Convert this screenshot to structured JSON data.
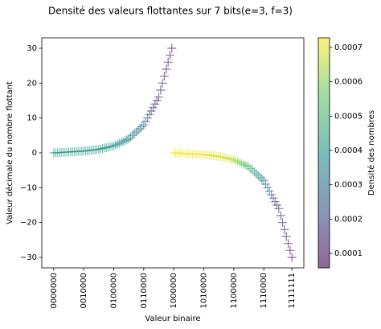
{
  "chart_data": {
    "type": "scatter",
    "title": "Densité des valeurs flottantes sur 7 bits(e=3, f=3)",
    "x_label": "Valeur binaire",
    "y_label": "Valeur décimale du nombre flottant",
    "colorbar_label": "Densité des nombres",
    "colormap": "viridis",
    "marker": "+",
    "x": [
      0,
      1,
      2,
      3,
      4,
      5,
      6,
      7,
      8,
      9,
      10,
      11,
      12,
      13,
      14,
      15,
      16,
      17,
      18,
      19,
      20,
      21,
      22,
      23,
      24,
      25,
      26,
      27,
      28,
      29,
      30,
      31,
      32,
      33,
      34,
      35,
      36,
      37,
      38,
      39,
      40,
      41,
      42,
      43,
      44,
      45,
      46,
      47,
      48,
      49,
      50,
      51,
      52,
      53,
      54,
      55,
      56,
      57,
      58,
      59,
      60,
      61,
      62,
      63,
      64,
      65,
      66,
      67,
      68,
      69,
      70,
      71,
      72,
      73,
      74,
      75,
      76,
      77,
      78,
      79,
      80,
      81,
      82,
      83,
      84,
      85,
      86,
      87,
      88,
      89,
      90,
      91,
      92,
      93,
      94,
      95,
      96,
      97,
      98,
      99,
      100,
      101,
      102,
      103,
      104,
      105,
      106,
      107,
      108,
      109,
      110,
      111,
      112,
      113,
      114,
      115,
      116,
      117,
      118,
      119,
      120,
      121,
      122,
      123,
      124,
      125,
      126,
      127
    ],
    "values": [
      0,
      0.03125,
      0.0625,
      0.09375,
      0.125,
      0.15625,
      0.1875,
      0.21875,
      0.25,
      0.28125,
      0.3125,
      0.34375,
      0.375,
      0.40625,
      0.4375,
      0.46875,
      0.5,
      0.5625,
      0.625,
      0.6875,
      0.75,
      0.8125,
      0.875,
      0.9375,
      1,
      1.125,
      1.25,
      1.375,
      1.5,
      1.625,
      1.75,
      1.875,
      2,
      2.25,
      2.5,
      2.75,
      3,
      3.25,
      3.5,
      3.75,
      4,
      4.5,
      5,
      5.5,
      6,
      6.5,
      7,
      7.5,
      8,
      9,
      10,
      11,
      12,
      13,
      14,
      15,
      16,
      18,
      20,
      22,
      24,
      26,
      28,
      30,
      0,
      -0.03125,
      -0.0625,
      -0.09375,
      -0.125,
      -0.15625,
      -0.1875,
      -0.21875,
      -0.25,
      -0.28125,
      -0.3125,
      -0.34375,
      -0.375,
      -0.40625,
      -0.4375,
      -0.46875,
      -0.5,
      -0.5625,
      -0.625,
      -0.6875,
      -0.75,
      -0.8125,
      -0.875,
      -0.9375,
      -1,
      -1.125,
      -1.25,
      -1.375,
      -1.5,
      -1.625,
      -1.75,
      -1.875,
      -2,
      -2.25,
      -2.5,
      -2.75,
      -3,
      -3.25,
      -3.5,
      -3.75,
      -4,
      -4.5,
      -5,
      -5.5,
      -6,
      -6.5,
      -7,
      -7.5,
      -8,
      -9,
      -10,
      -11,
      -12,
      -13,
      -14,
      -15,
      -16,
      -18,
      -20,
      -22,
      -24,
      -26,
      -28,
      -30
    ],
    "density": [
      0.00042,
      0.00042,
      0.00042,
      0.00042,
      0.00042,
      0.00042,
      0.00042,
      0.00042,
      0.00042,
      0.00042,
      0.00042,
      0.00042,
      0.00042,
      0.00042,
      0.00042,
      0.00042,
      0.00042,
      0.00042,
      0.00042,
      0.00042,
      0.00042,
      0.00042,
      0.00042,
      0.00042,
      0.00041,
      0.00041,
      0.00041,
      0.00041,
      0.00041,
      0.00041,
      0.00041,
      0.00041,
      0.0004,
      0.0004,
      0.00039,
      0.00039,
      0.00038,
      0.00038,
      0.00037,
      0.00037,
      0.00036,
      0.00035,
      0.00034,
      0.00033,
      0.00032,
      0.00031,
      0.0003,
      0.00029,
      0.00027,
      0.00025,
      0.00023,
      0.00021,
      0.00019,
      0.00017,
      0.00015,
      0.00014,
      0.00012,
      0.00011,
      0.0001,
      9e-05,
      8e-05,
      7e-05,
      7e-05,
      6e-05,
      0.00072,
      0.00072,
      0.00072,
      0.00072,
      0.00072,
      0.00072,
      0.00072,
      0.00072,
      0.00071,
      0.00071,
      0.00071,
      0.00071,
      0.00071,
      0.00071,
      0.00071,
      0.00071,
      0.0007,
      0.0007,
      0.0007,
      0.0007,
      0.0007,
      0.0007,
      0.0007,
      0.0007,
      0.00069,
      0.00069,
      0.00069,
      0.00069,
      0.00068,
      0.00068,
      0.00068,
      0.00068,
      0.00066,
      0.00064,
      0.00062,
      0.0006,
      0.00058,
      0.00056,
      0.00054,
      0.00052,
      0.0005,
      0.00048,
      0.00046,
      0.00044,
      0.00042,
      0.0004,
      0.00038,
      0.00036,
      0.00033,
      0.0003,
      0.00028,
      0.00025,
      0.00023,
      0.0002,
      0.00018,
      0.00016,
      0.00014,
      0.00013,
      0.00011,
      0.0001,
      9e-05,
      8e-05,
      7e-05,
      6e-05
    ],
    "xlim": [
      -6.35,
      133.35
    ],
    "ylim": [
      -33,
      33
    ],
    "clim": [
      5.8e-05,
      0.000728
    ],
    "xticks": [
      {
        "value": 0,
        "label": "0000000"
      },
      {
        "value": 16,
        "label": "0010000"
      },
      {
        "value": 32,
        "label": "0100000"
      },
      {
        "value": 48,
        "label": "0110000"
      },
      {
        "value": 64,
        "label": "1000000"
      },
      {
        "value": 80,
        "label": "1010000"
      },
      {
        "value": 96,
        "label": "1100000"
      },
      {
        "value": 112,
        "label": "1110000"
      },
      {
        "value": 127,
        "label": "1111111"
      }
    ],
    "yticks": [
      {
        "value": -30,
        "label": "−30"
      },
      {
        "value": -20,
        "label": "−20"
      },
      {
        "value": -10,
        "label": "−10"
      },
      0,
      10,
      20,
      30
    ],
    "cticks": [
      0.0001,
      0.0002,
      0.0003,
      0.0004,
      0.0005,
      0.0006,
      0.0007
    ]
  }
}
